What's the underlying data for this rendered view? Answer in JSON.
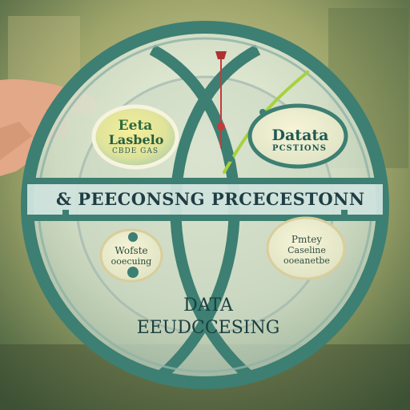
{
  "band_title": "& PEECONSNG PRCECESTONN",
  "bottom_title": {
    "line1": "DATA",
    "line2": "EEUDCCESING"
  },
  "badges": {
    "top_left": {
      "line1": "Eeta",
      "line2": "Lasbelo",
      "line3": "CBDE GAS"
    },
    "top_right": {
      "line1": "Datata",
      "line2": "PCSTIONS"
    },
    "bottom_left": {
      "line1": "Wofste",
      "line2": "ooecuing"
    },
    "bottom_right": {
      "line1": "Pmtey",
      "line2": "Caseline",
      "line3": "ooeanetbe"
    }
  },
  "colors": {
    "ring": "#3d7f72",
    "accent_line": "#a7d13d",
    "pin": "#c63a3a",
    "band": "#cfe3dc",
    "background": "#9aa06a"
  }
}
